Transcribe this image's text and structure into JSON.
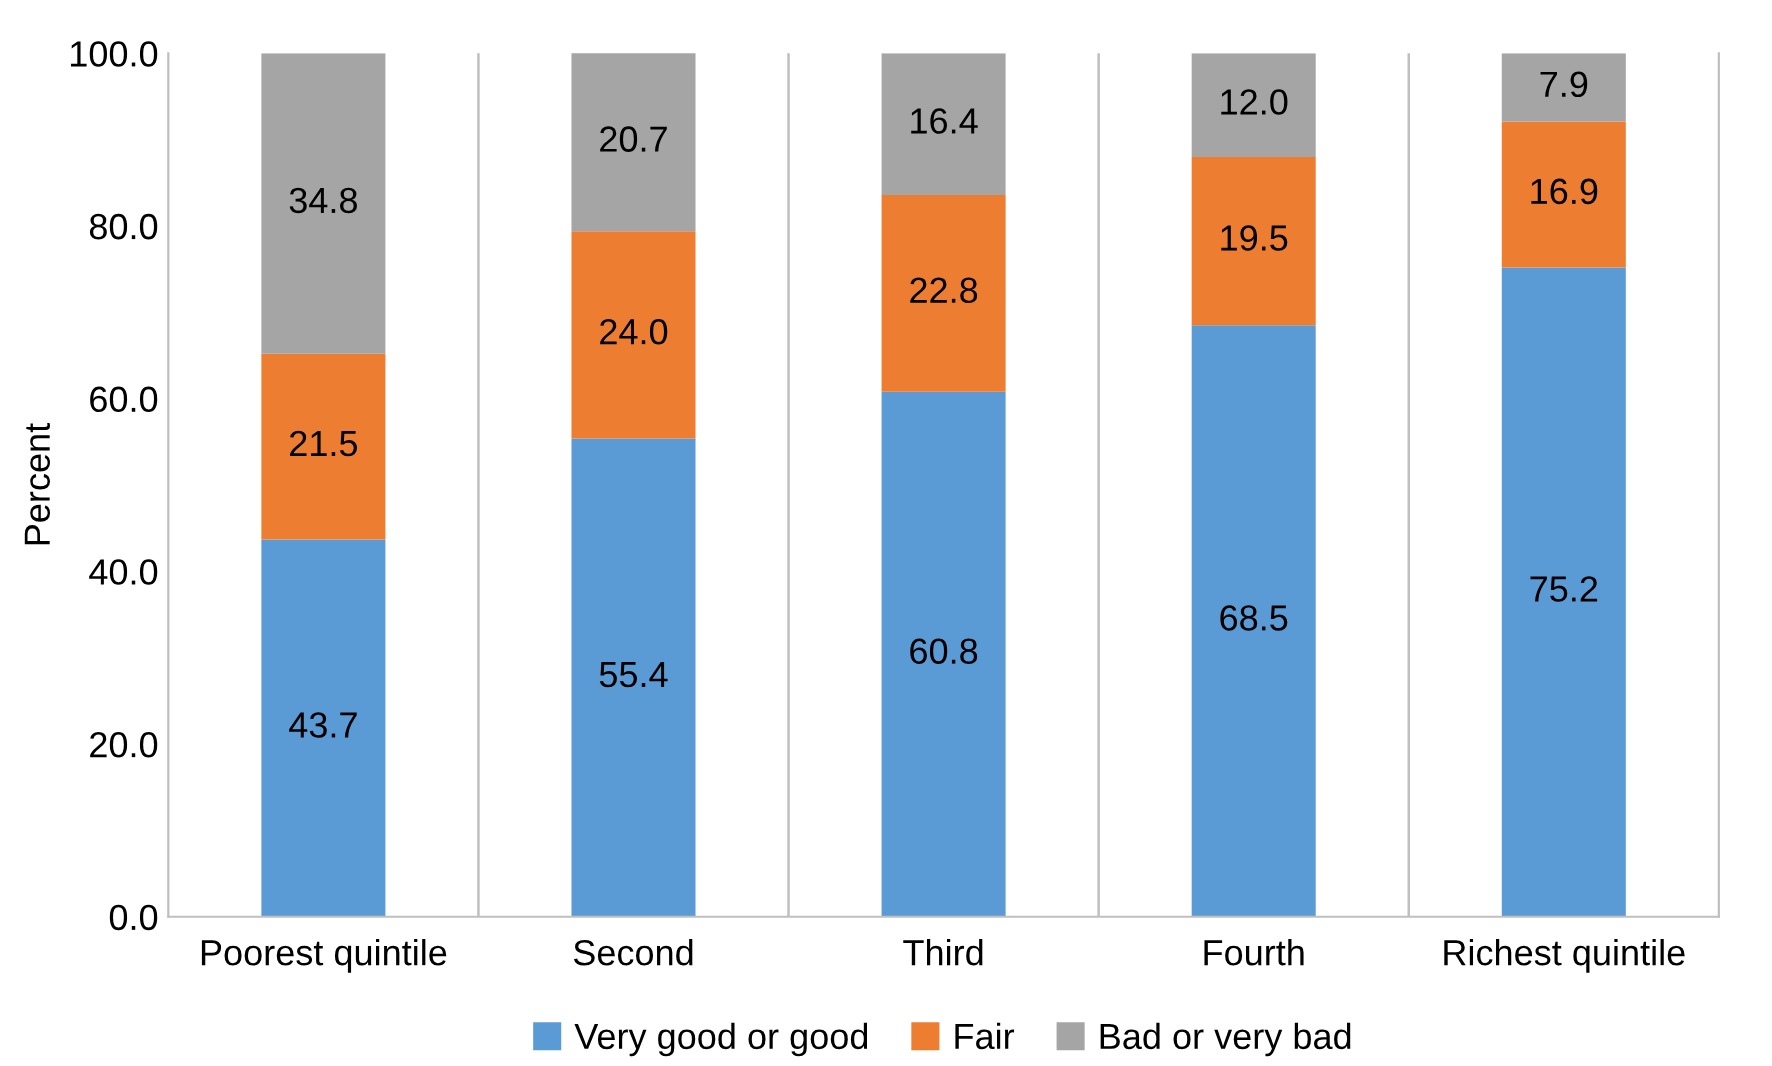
{
  "chart_data": {
    "type": "bar",
    "stacked": true,
    "ylabel": "Percent",
    "categories": [
      "Poorest quintile",
      "Second",
      "Third",
      "Fourth",
      "Richest quintile"
    ],
    "series": [
      {
        "name": "Very good or good",
        "color": "#5b9bd5",
        "values": [
          43.7,
          55.4,
          60.8,
          68.5,
          75.2
        ],
        "value_labels": [
          "43.7",
          "55.4",
          "60.8",
          "68.5",
          "75.2"
        ]
      },
      {
        "name": "Fair",
        "color": "#ed7d31",
        "values": [
          21.5,
          24.0,
          22.8,
          19.5,
          16.9
        ],
        "value_labels": [
          "21.5",
          "24.0",
          "22.8",
          "19.5",
          "16.9"
        ]
      },
      {
        "name": "Bad or very bad",
        "color": "#a5a5a5",
        "values": [
          34.8,
          20.7,
          16.4,
          12.0,
          7.9
        ],
        "value_labels": [
          "34.8",
          "20.7",
          "16.4",
          "12.0",
          "7.9"
        ]
      }
    ],
    "ylim": [
      0,
      100
    ],
    "yticks": [
      {
        "value": 0,
        "label": "0.0"
      },
      {
        "value": 20,
        "label": "20.0"
      },
      {
        "value": 40,
        "label": "40.0"
      },
      {
        "value": 60,
        "label": "60.0"
      },
      {
        "value": 80,
        "label": "80.0"
      },
      {
        "value": 100,
        "label": "100.0"
      }
    ],
    "grid": "x",
    "legend": "bottom"
  }
}
